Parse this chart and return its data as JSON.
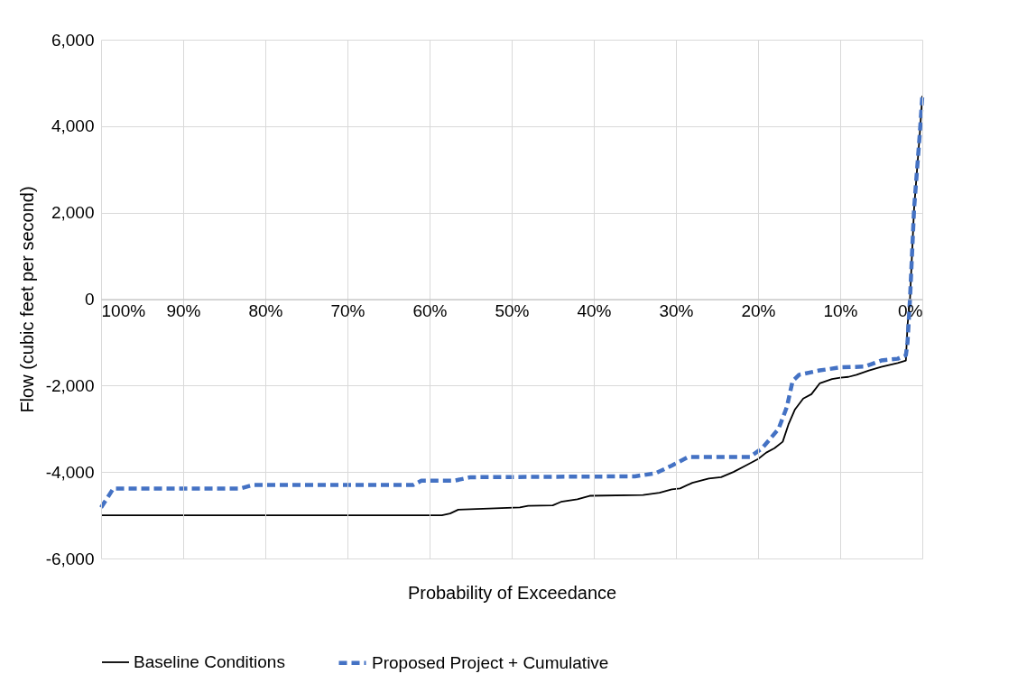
{
  "chart_data": {
    "type": "line",
    "xlabel": "Probability of Exceedance",
    "ylabel": "Flow (cubic feet per second)",
    "xlim": [
      100,
      0
    ],
    "xticks": [
      {
        "value": 100,
        "label": "100%"
      },
      {
        "value": 90,
        "label": "90%"
      },
      {
        "value": 80,
        "label": "80%"
      },
      {
        "value": 70,
        "label": "70%"
      },
      {
        "value": 60,
        "label": "60%"
      },
      {
        "value": 50,
        "label": "50%"
      },
      {
        "value": 40,
        "label": "40%"
      },
      {
        "value": 30,
        "label": "30%"
      },
      {
        "value": 20,
        "label": "20%"
      },
      {
        "value": 10,
        "label": "10%"
      },
      {
        "value": 0,
        "label": "0%"
      }
    ],
    "ylim": [
      -6000,
      6000
    ],
    "yticks": [
      {
        "value": -6000,
        "label": "-6,000"
      },
      {
        "value": -4000,
        "label": "-4,000"
      },
      {
        "value": -2000,
        "label": "-2,000"
      },
      0,
      {
        "value": 2000,
        "label": "2,000"
      },
      {
        "value": 4000,
        "label": "4,000"
      },
      {
        "value": 6000,
        "label": "6,000"
      }
    ],
    "grid": true,
    "legend": "bottom",
    "marker": "none",
    "series": [
      {
        "name": "Baseline Conditions",
        "color": "#000000",
        "line_style": "solid",
        "x": [
          100,
          58.5,
          57.5,
          56.5,
          52,
          49,
          48,
          45,
          44,
          42,
          40.5,
          34,
          32,
          30.5,
          29.5,
          28,
          26,
          24.5,
          23,
          21.5,
          20,
          19,
          18,
          17,
          16.3,
          15.5,
          14.5,
          13.5,
          12.5,
          11,
          10,
          9,
          8,
          6.5,
          5,
          3,
          2,
          1.8,
          1.5,
          1.0,
          0.3,
          0
        ],
        "values": [
          -5000,
          -5000,
          -4960,
          -4870,
          -4840,
          -4820,
          -4780,
          -4770,
          -4690,
          -4630,
          -4550,
          -4530,
          -4480,
          -4400,
          -4380,
          -4250,
          -4150,
          -4120,
          -4000,
          -3850,
          -3700,
          -3550,
          -3450,
          -3300,
          -2900,
          -2550,
          -2300,
          -2200,
          -1950,
          -1850,
          -1820,
          -1800,
          -1750,
          -1650,
          -1570,
          -1480,
          -1420,
          -600,
          0,
          2100,
          3840,
          4700
        ]
      },
      {
        "name": "Proposed Project + Cumulative",
        "color": "#4472c4",
        "line_style": "dashed",
        "x": [
          100,
          98.5,
          83,
          81.5,
          62,
          61,
          57,
          55,
          35,
          32.5,
          30.5,
          28.5,
          21,
          19.5,
          17.5,
          16.5,
          15.8,
          15,
          12.5,
          10,
          7,
          5,
          3,
          2,
          1.8,
          1.5,
          1.0,
          0.3,
          0
        ],
        "values": [
          -4820,
          -4380,
          -4380,
          -4300,
          -4300,
          -4200,
          -4200,
          -4120,
          -4100,
          -4030,
          -3850,
          -3650,
          -3650,
          -3450,
          -3000,
          -2500,
          -1900,
          -1750,
          -1650,
          -1580,
          -1560,
          -1420,
          -1380,
          -1300,
          -1000,
          0,
          2100,
          3840,
          4700
        ]
      }
    ]
  }
}
